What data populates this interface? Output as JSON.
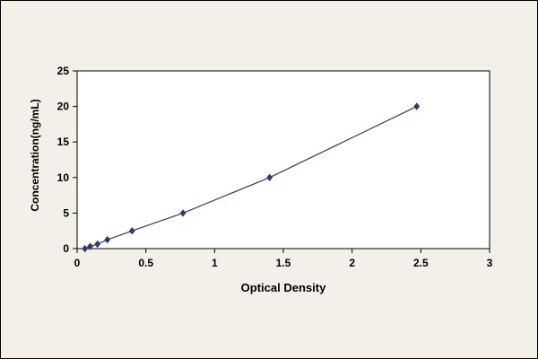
{
  "figure": {
    "background_color": "#f2f0e9",
    "plot_background": "#ffffff",
    "frame_color": "#000000"
  },
  "chart_data": {
    "type": "line",
    "title": "",
    "xlabel": "Optical Density",
    "ylabel": "Concentration(ng/mL)",
    "x": [
      0.057,
      0.095,
      0.148,
      0.22,
      0.4,
      0.77,
      1.4,
      2.47
    ],
    "y": [
      0,
      0.31,
      0.63,
      1.25,
      2.5,
      5,
      10,
      20
    ],
    "xlim": [
      0,
      3
    ],
    "ylim": [
      0,
      25
    ],
    "xticks": [
      0,
      0.5,
      1,
      1.5,
      2,
      2.5,
      3
    ],
    "yticks": [
      0,
      5,
      10,
      15,
      20,
      25
    ],
    "grid": false,
    "legend_position": "none",
    "series_name": "standard-curve",
    "line_color": "#2e3a66",
    "marker": "diamond"
  }
}
